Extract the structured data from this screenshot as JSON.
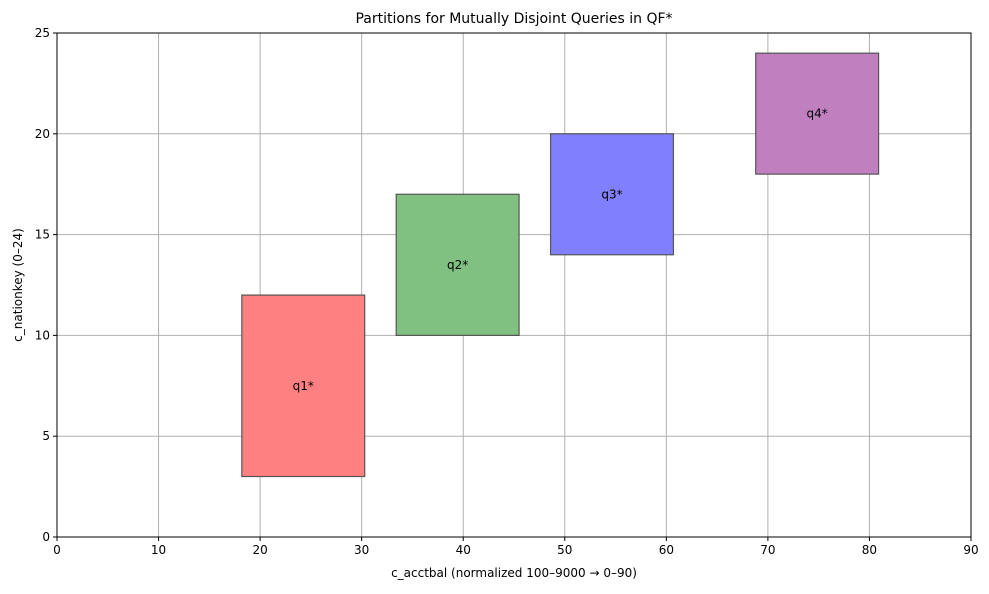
{
  "chart_data": {
    "type": "rectangle-partition",
    "title": "Partitions for Mutually Disjoint Queries in QF*",
    "xlabel": "c_acctbal (normalized 100–9000 → 0–90)",
    "ylabel": "c_nationkey (0–24)",
    "xlim": [
      0,
      90
    ],
    "ylim": [
      0,
      25
    ],
    "xticks": [
      0,
      10,
      20,
      30,
      40,
      50,
      60,
      70,
      80,
      90
    ],
    "yticks": [
      0,
      5,
      10,
      15,
      20,
      25
    ],
    "grid": true,
    "partitions": [
      {
        "label": "q1*",
        "x0": 18.2,
        "x1": 30.3,
        "y0": 3,
        "y1": 12,
        "color": "#ff8080"
      },
      {
        "label": "q2*",
        "x0": 33.4,
        "x1": 45.5,
        "y0": 10,
        "y1": 17,
        "color": "#80c080"
      },
      {
        "label": "q3*",
        "x0": 48.6,
        "x1": 60.7,
        "y0": 14,
        "y1": 20,
        "color": "#8080ff"
      },
      {
        "label": "q4*",
        "x0": 68.8,
        "x1": 80.9,
        "y0": 18,
        "y1": 24,
        "color": "#c080c0"
      }
    ]
  }
}
